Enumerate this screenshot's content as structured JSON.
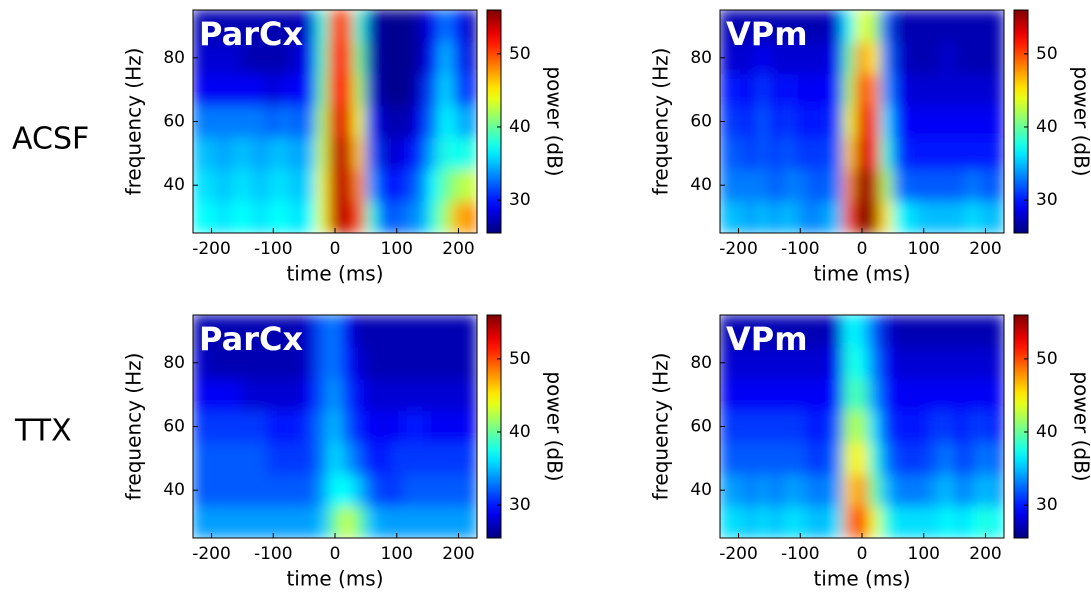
{
  "row_labels": [
    "ACSF",
    "TTX"
  ],
  "chart_data": [
    {
      "type": "heatmap",
      "title": "ParCx",
      "colormap": "jet",
      "x_label": "time (ms)",
      "y_label": "frequency (Hz)",
      "x": [
        -220,
        -200,
        -180,
        -160,
        -140,
        -120,
        -100,
        -80,
        -60,
        -40,
        -20,
        0,
        20,
        40,
        60,
        80,
        100,
        120,
        140,
        160,
        180,
        200,
        220
      ],
      "y": [
        30,
        40,
        50,
        60,
        70,
        80,
        90
      ],
      "xlim": [
        -230,
        230
      ],
      "xticks": [
        -200,
        -100,
        0,
        100,
        200
      ],
      "ylim": [
        25,
        95
      ],
      "yticks": [
        40,
        60,
        80
      ],
      "colorbar": {
        "label": "power (dB)",
        "lim": [
          25.5,
          56
        ],
        "ticks": [
          30,
          40,
          50
        ]
      },
      "values": [
        [
          37,
          37,
          36,
          37,
          37,
          36,
          37,
          37,
          36,
          37,
          44,
          54,
          54,
          50,
          38,
          32,
          32,
          33,
          34,
          38,
          42,
          47,
          48
        ],
        [
          36,
          36,
          35,
          36,
          36,
          35,
          36,
          36,
          35,
          36,
          44,
          54,
          54,
          48,
          34,
          30,
          30,
          31,
          33,
          37,
          40,
          42,
          43
        ],
        [
          35,
          35,
          34,
          35,
          35,
          34,
          35,
          35,
          34,
          35,
          43,
          54,
          54,
          46,
          32,
          28,
          28,
          29,
          31,
          35,
          38,
          37,
          38
        ],
        [
          33,
          33,
          33,
          33,
          33,
          33,
          32,
          33,
          32,
          33,
          42,
          53,
          53,
          44,
          30,
          27,
          27,
          27,
          29,
          33,
          37,
          35,
          34
        ],
        [
          29,
          29,
          29,
          29,
          29,
          29,
          28,
          29,
          29,
          30,
          40,
          52,
          52,
          42,
          28,
          26,
          26,
          26,
          28,
          32,
          36,
          32,
          30
        ],
        [
          28,
          28,
          28,
          28,
          27,
          27,
          27,
          27,
          28,
          29,
          39,
          51,
          51,
          40,
          27,
          26,
          26,
          26,
          27,
          30,
          35,
          31,
          28
        ],
        [
          27,
          27,
          27,
          27,
          27,
          27,
          27,
          27,
          27,
          28,
          38,
          50,
          50,
          38,
          27,
          26,
          26,
          26,
          27,
          29,
          33,
          30,
          27
        ]
      ]
    },
    {
      "type": "heatmap",
      "title": "VPm",
      "colormap": "jet",
      "x_label": "time (ms)",
      "y_label": "frequency (Hz)",
      "x": [
        -220,
        -200,
        -180,
        -160,
        -140,
        -120,
        -100,
        -80,
        -60,
        -40,
        -20,
        0,
        20,
        40,
        60,
        80,
        100,
        120,
        140,
        160,
        180,
        200,
        220
      ],
      "y": [
        30,
        40,
        50,
        60,
        70,
        80,
        90
      ],
      "xlim": [
        -230,
        230
      ],
      "xticks": [
        -200,
        -100,
        0,
        100,
        200
      ],
      "ylim": [
        25,
        95
      ],
      "yticks": [
        40,
        60,
        80
      ],
      "colorbar": {
        "label": "power (dB)",
        "lim": [
          25.5,
          56
        ],
        "ticks": [
          30,
          40,
          50
        ]
      },
      "values": [
        [
          35,
          35,
          34,
          35,
          34,
          35,
          34,
          33,
          34,
          35,
          50,
          56,
          55,
          45,
          37,
          36,
          35,
          35,
          35,
          35,
          36,
          35,
          35
        ],
        [
          33,
          33,
          33,
          33,
          32,
          33,
          33,
          32,
          32,
          33,
          48,
          56,
          54,
          42,
          33,
          32,
          32,
          32,
          32,
          32,
          33,
          32,
          32
        ],
        [
          32,
          32,
          31,
          32,
          31,
          32,
          31,
          31,
          31,
          32,
          46,
          54,
          52,
          38,
          31,
          30,
          30,
          30,
          30,
          30,
          30,
          30,
          30
        ],
        [
          31,
          31,
          30,
          32,
          30,
          31,
          30,
          30,
          30,
          31,
          44,
          53,
          50,
          36,
          30,
          29,
          29,
          29,
          29,
          29,
          29,
          29,
          29
        ],
        [
          30,
          30,
          29,
          31,
          29,
          30,
          29,
          29,
          29,
          30,
          42,
          51,
          48,
          34,
          29,
          28,
          28,
          28,
          28,
          28,
          28,
          28,
          28
        ],
        [
          28,
          28,
          28,
          29,
          28,
          28,
          28,
          28,
          28,
          29,
          40,
          48,
          45,
          33,
          28,
          27,
          27,
          27,
          28,
          27,
          27,
          27,
          27
        ],
        [
          27,
          27,
          27,
          27,
          27,
          27,
          27,
          27,
          27,
          28,
          37,
          44,
          42,
          32,
          27,
          27,
          27,
          27,
          27,
          27,
          27,
          27,
          27
        ]
      ]
    },
    {
      "type": "heatmap",
      "title": "ParCx",
      "colormap": "jet",
      "x_label": "time (ms)",
      "y_label": "frequency (Hz)",
      "x": [
        -220,
        -200,
        -180,
        -160,
        -140,
        -120,
        -100,
        -80,
        -60,
        -40,
        -20,
        0,
        20,
        40,
        60,
        80,
        100,
        120,
        140,
        160,
        180,
        200,
        220
      ],
      "y": [
        30,
        40,
        50,
        60,
        70,
        80,
        90
      ],
      "xlim": [
        -230,
        230
      ],
      "xticks": [
        -200,
        -100,
        0,
        100,
        200
      ],
      "ylim": [
        25,
        95
      ],
      "yticks": [
        40,
        60,
        80
      ],
      "colorbar": {
        "label": "power (dB)",
        "lim": [
          25.5,
          56
        ],
        "ticks": [
          30,
          40,
          50
        ]
      },
      "values": [
        [
          34,
          34,
          34,
          34,
          34,
          34,
          34,
          34,
          34,
          34,
          35,
          40,
          43,
          40,
          35,
          34,
          34,
          34,
          34,
          34,
          34,
          34,
          34
        ],
        [
          32,
          32,
          32,
          32,
          32,
          32,
          32,
          32,
          32,
          32,
          34,
          37,
          37,
          35,
          32,
          31,
          31,
          32,
          32,
          32,
          32,
          32,
          32
        ],
        [
          32,
          32,
          32,
          32,
          32,
          32,
          31,
          31,
          31,
          31,
          33,
          36,
          34,
          32,
          30,
          30,
          31,
          31,
          31,
          31,
          31,
          31,
          31
        ],
        [
          31,
          31,
          31,
          31,
          31,
          31,
          30,
          30,
          30,
          31,
          33,
          35,
          32,
          30,
          29,
          29,
          29,
          30,
          30,
          29,
          29,
          29,
          29
        ],
        [
          29,
          29,
          29,
          29,
          28,
          28,
          28,
          28,
          28,
          29,
          32,
          34,
          31,
          29,
          28,
          28,
          28,
          28,
          28,
          28,
          28,
          28,
          28
        ],
        [
          28,
          27,
          27,
          27,
          27,
          27,
          27,
          27,
          27,
          28,
          32,
          33,
          30,
          28,
          27,
          27,
          27,
          27,
          27,
          27,
          27,
          27,
          27
        ],
        [
          27,
          27,
          27,
          27,
          27,
          27,
          27,
          27,
          27,
          28,
          32,
          33,
          29,
          27,
          27,
          27,
          27,
          27,
          27,
          27,
          27,
          27,
          27
        ]
      ]
    },
    {
      "type": "heatmap",
      "title": "VPm",
      "colormap": "jet",
      "x_label": "time (ms)",
      "y_label": "frequency (Hz)",
      "x": [
        -220,
        -200,
        -180,
        -160,
        -140,
        -120,
        -100,
        -80,
        -60,
        -40,
        -20,
        0,
        20,
        40,
        60,
        80,
        100,
        120,
        140,
        160,
        180,
        200,
        220
      ],
      "y": [
        30,
        40,
        50,
        60,
        70,
        80,
        90
      ],
      "xlim": [
        -230,
        230
      ],
      "xticks": [
        -200,
        -100,
        0,
        100,
        200
      ],
      "ylim": [
        25,
        95
      ],
      "yticks": [
        40,
        60,
        80
      ],
      "colorbar": {
        "label": "power (dB)",
        "lim": [
          25.5,
          56
        ],
        "ticks": [
          30,
          40,
          50
        ]
      },
      "values": [
        [
          36,
          36,
          35,
          36,
          35,
          36,
          36,
          35,
          35,
          36,
          48,
          52,
          44,
          38,
          36,
          36,
          36,
          36,
          37,
          36,
          37,
          38,
          37
        ],
        [
          34,
          34,
          33,
          34,
          33,
          34,
          34,
          33,
          33,
          34,
          46,
          48,
          40,
          35,
          33,
          33,
          33,
          34,
          35,
          33,
          34,
          35,
          34
        ],
        [
          32,
          32,
          32,
          32,
          32,
          32,
          32,
          31,
          31,
          33,
          44,
          45,
          38,
          33,
          31,
          31,
          31,
          32,
          33,
          31,
          32,
          33,
          32
        ],
        [
          31,
          31,
          31,
          31,
          31,
          31,
          31,
          30,
          30,
          32,
          42,
          42,
          36,
          31,
          30,
          30,
          30,
          31,
          31,
          30,
          31,
          31,
          30
        ],
        [
          29,
          29,
          29,
          29,
          29,
          29,
          29,
          29,
          29,
          30,
          39,
          39,
          34,
          30,
          29,
          29,
          29,
          29,
          29,
          29,
          29,
          29,
          29
        ],
        [
          28,
          28,
          28,
          28,
          28,
          28,
          28,
          28,
          28,
          29,
          38,
          37,
          33,
          29,
          28,
          28,
          28,
          28,
          28,
          28,
          28,
          28,
          28
        ],
        [
          27,
          27,
          27,
          27,
          27,
          27,
          27,
          27,
          27,
          28,
          37,
          36,
          32,
          28,
          27,
          27,
          27,
          27,
          27,
          27,
          27,
          27,
          27
        ]
      ]
    }
  ]
}
